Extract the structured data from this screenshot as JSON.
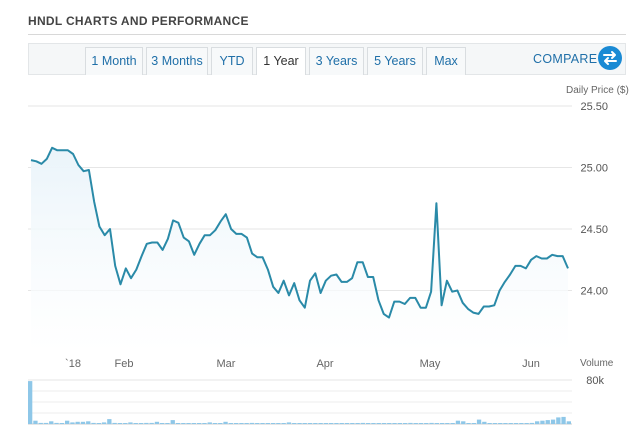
{
  "header": {
    "title": "HNDL CHARTS AND PERFORMANCE"
  },
  "tabs": [
    {
      "label": "1 Month",
      "active": false
    },
    {
      "label": "3 Months",
      "active": false
    },
    {
      "label": "YTD",
      "active": false
    },
    {
      "label": "1 Year",
      "active": true
    },
    {
      "label": "3 Years",
      "active": false
    },
    {
      "label": "5 Years",
      "active": false
    },
    {
      "label": "Max",
      "active": false
    }
  ],
  "compare": {
    "label": "COMPARE",
    "icon": "swap-arrows-icon"
  },
  "colors": {
    "line": "#2a8aa8",
    "area": "#eaf4fa",
    "volume": "#8ec7e8",
    "accent": "#1a8ad4"
  },
  "chart_data": [
    {
      "type": "area",
      "ylabel": "Daily Price ($)",
      "y_ticks": [
        "25.50",
        "25.00",
        "24.50",
        "24.00"
      ],
      "ylim": [
        23.5,
        25.5
      ],
      "x_ticks": [
        "`18",
        "Feb",
        "Mar",
        "Apr",
        "May",
        "Jun"
      ],
      "grid": true,
      "series": [
        {
          "values": [
            25.06,
            25.05,
            25.03,
            25.07,
            25.16,
            25.14,
            25.14,
            25.14,
            25.11,
            25.02,
            24.97,
            24.98,
            24.72,
            24.52,
            24.45,
            24.5,
            24.2,
            24.05,
            24.18,
            24.1,
            24.17,
            24.28,
            24.38,
            24.39,
            24.39,
            24.33,
            24.42,
            24.57,
            24.55,
            24.43,
            24.4,
            24.29,
            24.38,
            24.45,
            24.45,
            24.49,
            24.56,
            24.62,
            24.5,
            24.46,
            24.46,
            24.43,
            24.3,
            24.27,
            24.27,
            24.17,
            24.03,
            23.98,
            24.08,
            23.96,
            24.06,
            23.92,
            23.86,
            24.08,
            24.14,
            23.98,
            24.08,
            24.12,
            24.13,
            24.07,
            24.07,
            24.1,
            24.23,
            24.23,
            24.11,
            24.11,
            23.92,
            23.81,
            23.78,
            23.91,
            23.91,
            23.89,
            23.94,
            23.94,
            23.86,
            23.86,
            23.99,
            24.71,
            23.88,
            24.08,
            23.99,
            24.0,
            23.9,
            23.85,
            23.82,
            23.81,
            23.87,
            23.87,
            23.88,
            24.0,
            24.07,
            24.13,
            24.2,
            24.2,
            24.18,
            24.25,
            24.28,
            24.26,
            24.26,
            24.29,
            24.28,
            24.28,
            24.18
          ]
        }
      ]
    },
    {
      "type": "bar",
      "ylabel": "Volume",
      "y_ticks": [
        "80k"
      ],
      "ylim": [
        0,
        80000
      ],
      "values": [
        78000,
        6000,
        2000,
        2000,
        5000,
        2000,
        1500,
        6000,
        3000,
        4000,
        4000,
        5000,
        2000,
        1500,
        3000,
        9000,
        2000,
        1500,
        1000,
        3000,
        1500,
        1500,
        2000,
        2000,
        4000,
        1000,
        1500,
        7000,
        1500,
        1500,
        1000,
        1000,
        1000,
        1500,
        3000,
        1500,
        1000,
        4000,
        1000,
        1000,
        1000,
        1000,
        2000,
        1000,
        1000,
        1000,
        1000,
        1000,
        1000,
        3000,
        1500,
        1000,
        1000,
        1500,
        1000,
        1000,
        1000,
        1000,
        1000,
        1500,
        1000,
        1000,
        1000,
        2000,
        1000,
        1000,
        1000,
        1000,
        1000,
        1000,
        1000,
        1000,
        2000,
        1000,
        1000,
        1000,
        2000,
        1500,
        1000,
        1000,
        1000,
        6000,
        5000,
        1000,
        1000,
        8000,
        4000,
        1000,
        1000,
        1000,
        1000,
        1000,
        1000,
        1000,
        1000,
        2000,
        5000,
        6000,
        7000,
        8000,
        12000,
        13000,
        5000
      ]
    }
  ]
}
